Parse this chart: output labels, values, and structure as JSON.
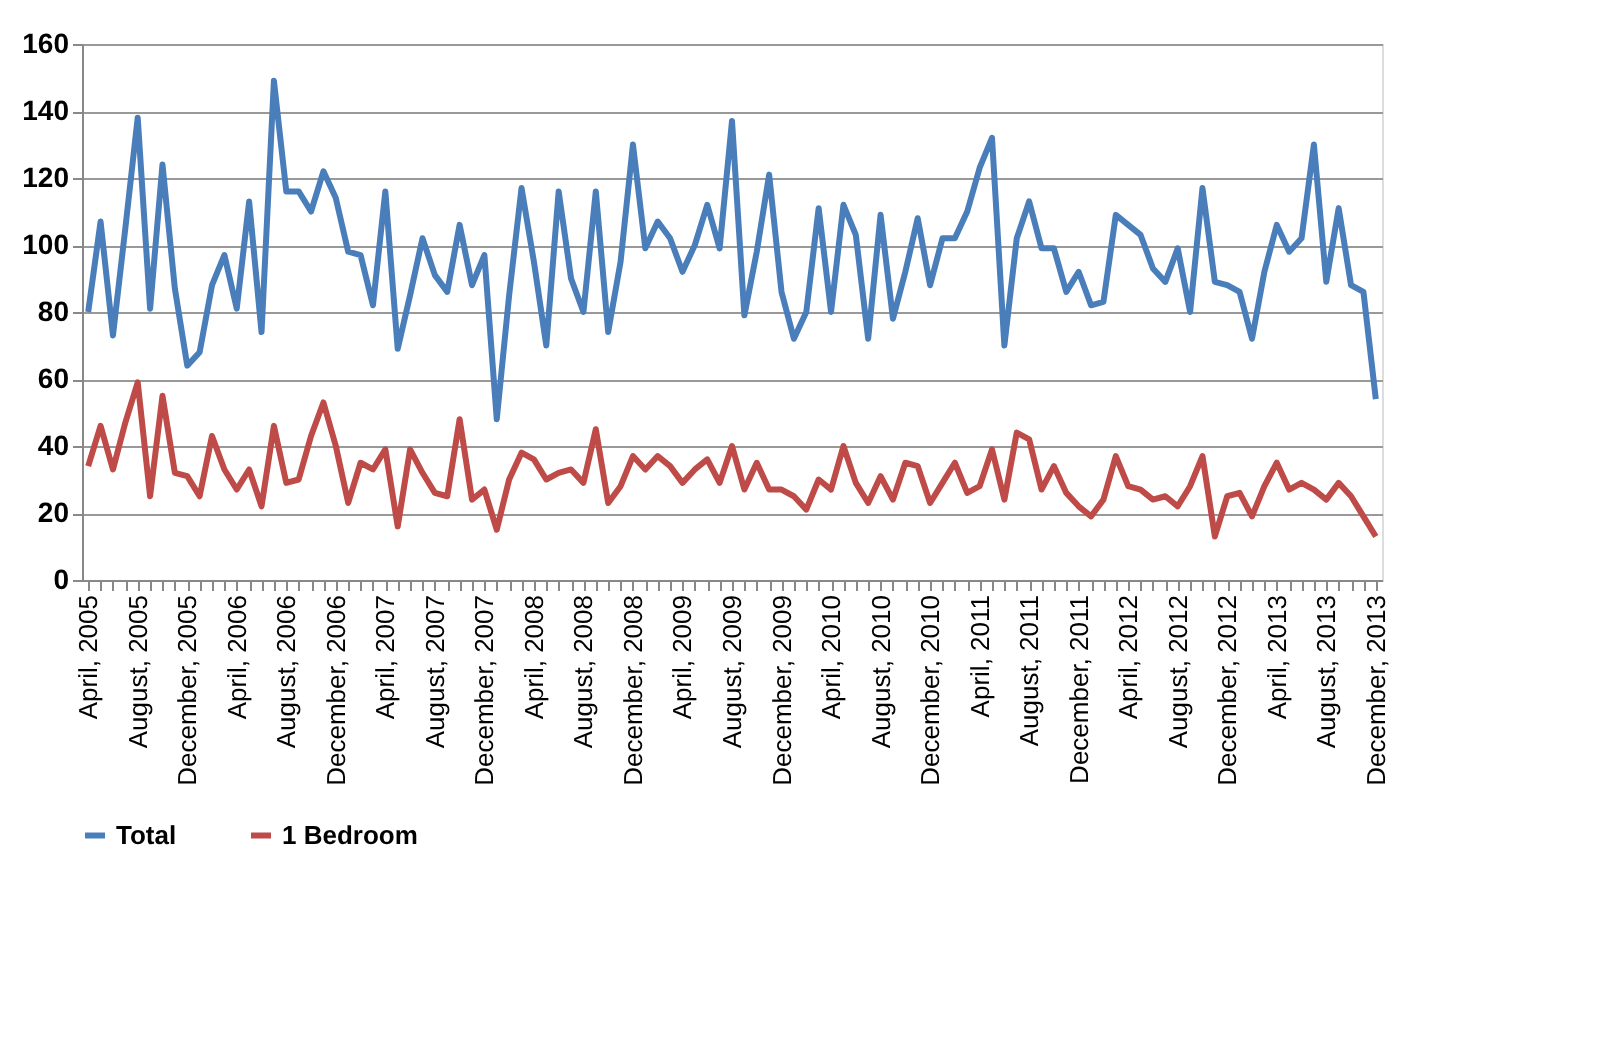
{
  "chart_data": {
    "type": "line",
    "categories": [
      "April, 2005",
      null,
      null,
      null,
      "August, 2005",
      null,
      null,
      null,
      "December, 2005",
      null,
      null,
      null,
      "April, 2006",
      null,
      null,
      null,
      "August, 2006",
      null,
      null,
      null,
      "December, 2006",
      null,
      null,
      null,
      "April, 2007",
      null,
      null,
      null,
      "August, 2007",
      null,
      null,
      null,
      "December, 2007",
      null,
      null,
      null,
      "April, 2008",
      null,
      null,
      null,
      "August, 2008",
      null,
      null,
      null,
      "December, 2008",
      null,
      null,
      null,
      "April, 2009",
      null,
      null,
      null,
      "August, 2009",
      null,
      null,
      null,
      "December, 2009",
      null,
      null,
      null,
      "April, 2010",
      null,
      null,
      null,
      "August, 2010",
      null,
      null,
      null,
      "December, 2010",
      null,
      null,
      null,
      "April, 2011",
      null,
      null,
      null,
      "August, 2011",
      null,
      null,
      null,
      "December, 2011",
      null,
      null,
      null,
      "April, 2012",
      null,
      null,
      null,
      "August, 2012",
      null,
      null,
      null,
      "December, 2012",
      null,
      null,
      null,
      "April, 2013",
      null,
      null,
      null,
      "August, 2013",
      null,
      null,
      null,
      "December, 2013"
    ],
    "series": [
      {
        "name": "Total",
        "color": "#4a7ebb",
        "values": [
          80,
          107,
          73,
          105,
          138,
          81,
          124,
          87,
          64,
          68,
          88,
          97,
          81,
          113,
          74,
          149,
          116,
          116,
          110,
          122,
          114,
          98,
          97,
          82,
          116,
          69,
          85,
          102,
          91,
          86,
          106,
          88,
          97,
          48,
          85,
          117,
          95,
          70,
          116,
          90,
          80,
          116,
          74,
          95,
          130,
          99,
          107,
          102,
          92,
          100,
          112,
          99,
          137,
          79,
          98,
          121,
          86,
          72,
          80,
          111,
          80,
          112,
          103,
          72,
          109,
          78,
          92,
          108,
          88,
          102,
          102,
          110,
          123,
          132,
          70,
          102,
          113,
          99,
          99,
          86,
          92,
          82,
          83,
          109,
          106,
          103,
          93,
          89,
          99,
          80,
          117,
          89,
          88,
          86,
          72,
          92,
          106,
          98,
          102,
          130,
          89,
          111,
          88,
          86,
          54
        ]
      },
      {
        "name": "1 Bedroom",
        "color": "#be4b48",
        "values": [
          34,
          46,
          33,
          47,
          59,
          25,
          55,
          32,
          31,
          25,
          43,
          33,
          27,
          33,
          22,
          46,
          29,
          30,
          43,
          53,
          40,
          23,
          35,
          33,
          39,
          16,
          39,
          32,
          26,
          25,
          48,
          24,
          27,
          15,
          30,
          38,
          36,
          30,
          32,
          33,
          29,
          45,
          23,
          28,
          37,
          33,
          37,
          34,
          29,
          33,
          36,
          29,
          40,
          27,
          35,
          27,
          27,
          25,
          21,
          30,
          27,
          40,
          29,
          23,
          31,
          24,
          35,
          34,
          23,
          29,
          35,
          26,
          28,
          39,
          24,
          44,
          42,
          27,
          34,
          26,
          22,
          19,
          24,
          37,
          28,
          27,
          24,
          25,
          22,
          28,
          37,
          13,
          25,
          26,
          19,
          28,
          35,
          27,
          29,
          27,
          24,
          29,
          25,
          19,
          13
        ]
      }
    ],
    "ylim": [
      0,
      160
    ],
    "yticks": [
      0,
      20,
      40,
      60,
      80,
      100,
      120,
      140,
      160
    ],
    "grid": "y",
    "legend": "bottom",
    "marker": "none",
    "line_style": "solid"
  }
}
